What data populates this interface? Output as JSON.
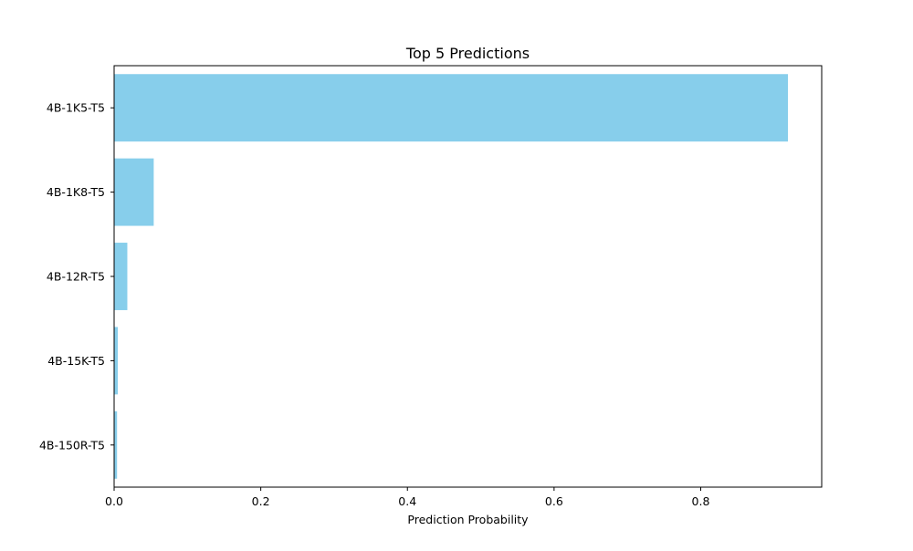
{
  "chart_data": {
    "type": "bar",
    "orientation": "horizontal",
    "title": "Top 5 Predictions",
    "xlabel": "Prediction Probability",
    "ylabel": "",
    "categories": [
      "4B-1K5-T5",
      "4B-1K8-T5",
      "4B-12R-T5",
      "4B-15K-T5",
      "4B-150R-T5"
    ],
    "values": [
      0.919,
      0.054,
      0.018,
      0.005,
      0.004
    ],
    "xlim": [
      0,
      0.965
    ],
    "xticks": [
      0.0,
      0.2,
      0.4,
      0.6,
      0.8
    ],
    "xtick_labels": [
      "0.0",
      "0.2",
      "0.4",
      "0.6",
      "0.8"
    ],
    "bar_color": "#87ceeb",
    "grid": false,
    "legend": "none"
  }
}
